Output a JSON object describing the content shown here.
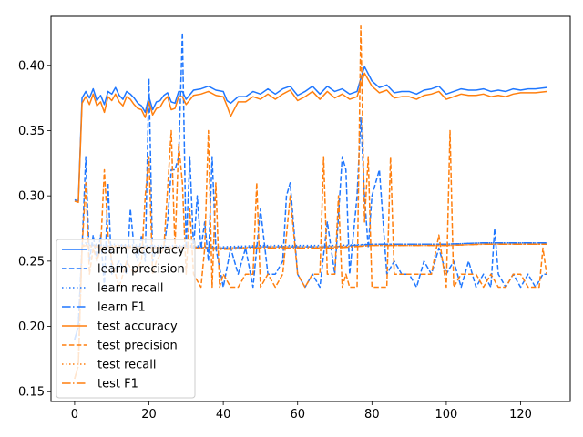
{
  "chart_data": {
    "type": "line",
    "title": "",
    "xlabel": "",
    "ylabel": "",
    "xlim": [
      -6.35,
      133.35
    ],
    "ylim": [
      0.1425,
      0.4375
    ],
    "xticks": [
      0,
      20,
      40,
      60,
      80,
      100,
      120
    ],
    "yticks": [
      0.15,
      0.2,
      0.25,
      0.3,
      0.35,
      0.4
    ],
    "ytick_labels": [
      "0.15",
      "0.20",
      "0.25",
      "0.30",
      "0.35",
      "0.40"
    ],
    "grid": false,
    "legend_position": "lower-left",
    "colors": {
      "learn": "#1f77ff",
      "test": "#ff7f0e"
    },
    "series": [
      {
        "name": "learn accuracy",
        "group": "learn",
        "style": "solid",
        "x": [
          0,
          1,
          2,
          3,
          4,
          5,
          6,
          7,
          8,
          9,
          10,
          11,
          12,
          13,
          14,
          15,
          16,
          17,
          18,
          19,
          20,
          21,
          22,
          23,
          24,
          25,
          26,
          27,
          28,
          29,
          30,
          32,
          34,
          36,
          38,
          40,
          41,
          42,
          44,
          46,
          48,
          50,
          52,
          54,
          56,
          58,
          60,
          62,
          64,
          66,
          68,
          70,
          72,
          74,
          76,
          77,
          78,
          80,
          82,
          84,
          86,
          88,
          90,
          92,
          94,
          96,
          98,
          100,
          102,
          104,
          106,
          108,
          110,
          112,
          114,
          116,
          118,
          120,
          122,
          124,
          127
        ],
        "y": [
          0.297,
          0.296,
          0.375,
          0.38,
          0.375,
          0.382,
          0.373,
          0.377,
          0.37,
          0.38,
          0.378,
          0.383,
          0.377,
          0.374,
          0.38,
          0.378,
          0.375,
          0.371,
          0.369,
          0.364,
          0.376,
          0.366,
          0.372,
          0.373,
          0.377,
          0.379,
          0.372,
          0.371,
          0.38,
          0.38,
          0.374,
          0.381,
          0.382,
          0.384,
          0.381,
          0.38,
          0.373,
          0.371,
          0.376,
          0.376,
          0.38,
          0.378,
          0.382,
          0.378,
          0.382,
          0.384,
          0.377,
          0.38,
          0.384,
          0.378,
          0.384,
          0.38,
          0.382,
          0.378,
          0.38,
          0.39,
          0.399,
          0.388,
          0.383,
          0.385,
          0.379,
          0.38,
          0.38,
          0.378,
          0.381,
          0.382,
          0.384,
          0.378,
          0.38,
          0.382,
          0.381,
          0.381,
          0.382,
          0.38,
          0.381,
          0.38,
          0.382,
          0.381,
          0.382,
          0.382,
          0.383
        ]
      },
      {
        "name": "learn precision",
        "group": "learn",
        "style": "dashed",
        "x": [
          0,
          1,
          2,
          3,
          4,
          5,
          6,
          7,
          8,
          9,
          10,
          12,
          14,
          15,
          16,
          17,
          18,
          19,
          20,
          21,
          22,
          24,
          25,
          26,
          27,
          28,
          29,
          30,
          31,
          32,
          33,
          34,
          35,
          36,
          37,
          38,
          40,
          42,
          44,
          46,
          48,
          50,
          52,
          54,
          56,
          57,
          58,
          60,
          62,
          64,
          66,
          68,
          70,
          72,
          73,
          74,
          76,
          77,
          78,
          79,
          80,
          82,
          84,
          86,
          88,
          90,
          92,
          94,
          96,
          98,
          100,
          102,
          104,
          106,
          108,
          110,
          112,
          113,
          114,
          116,
          118,
          120,
          122,
          124,
          126,
          127
        ],
        "y": [
          0.19,
          0.2,
          0.26,
          0.33,
          0.25,
          0.27,
          0.25,
          0.27,
          0.23,
          0.31,
          0.24,
          0.25,
          0.24,
          0.29,
          0.26,
          0.25,
          0.27,
          0.25,
          0.39,
          0.25,
          0.26,
          0.26,
          0.28,
          0.32,
          0.32,
          0.33,
          0.425,
          0.26,
          0.33,
          0.26,
          0.3,
          0.26,
          0.28,
          0.25,
          0.33,
          0.26,
          0.23,
          0.26,
          0.24,
          0.26,
          0.23,
          0.29,
          0.24,
          0.24,
          0.25,
          0.3,
          0.31,
          0.24,
          0.23,
          0.24,
          0.23,
          0.28,
          0.24,
          0.33,
          0.32,
          0.24,
          0.3,
          0.36,
          0.3,
          0.26,
          0.3,
          0.32,
          0.24,
          0.25,
          0.24,
          0.24,
          0.23,
          0.25,
          0.24,
          0.26,
          0.24,
          0.25,
          0.23,
          0.25,
          0.23,
          0.24,
          0.23,
          0.275,
          0.24,
          0.23,
          0.24,
          0.23,
          0.24,
          0.23,
          0.24,
          0.24
        ]
      },
      {
        "name": "learn recall",
        "group": "learn",
        "style": "dotted",
        "x": [
          0,
          1,
          2,
          3,
          4,
          6,
          8,
          10,
          20,
          30,
          40,
          50,
          60,
          70,
          80,
          90,
          100,
          110,
          120,
          127
        ],
        "y": [
          0.19,
          0.2,
          0.262,
          0.264,
          0.263,
          0.263,
          0.262,
          0.263,
          0.262,
          0.262,
          0.261,
          0.262,
          0.262,
          0.262,
          0.263,
          0.263,
          0.263,
          0.264,
          0.264,
          0.264
        ]
      },
      {
        "name": "learn F1",
        "group": "learn",
        "style": "dashdot",
        "x": [
          0,
          1,
          2,
          3,
          4,
          6,
          8,
          10,
          20,
          30,
          40,
          50,
          60,
          70,
          80,
          90,
          100,
          110,
          120,
          127
        ],
        "y": [
          0.19,
          0.2,
          0.261,
          0.263,
          0.262,
          0.262,
          0.261,
          0.262,
          0.261,
          0.261,
          0.26,
          0.261,
          0.261,
          0.261,
          0.263,
          0.263,
          0.263,
          0.264,
          0.264,
          0.264
        ]
      },
      {
        "name": "test accuracy",
        "group": "test",
        "style": "solid",
        "x": [
          0,
          1,
          2,
          3,
          4,
          5,
          6,
          7,
          8,
          9,
          10,
          11,
          12,
          13,
          14,
          15,
          16,
          17,
          18,
          19,
          20,
          21,
          22,
          23,
          24,
          25,
          26,
          27,
          28,
          29,
          30,
          32,
          34,
          36,
          38,
          40,
          41,
          42,
          44,
          46,
          48,
          50,
          52,
          54,
          56,
          58,
          60,
          62,
          64,
          66,
          68,
          70,
          72,
          74,
          76,
          77,
          78,
          80,
          82,
          84,
          86,
          88,
          90,
          92,
          94,
          96,
          98,
          100,
          102,
          104,
          106,
          108,
          110,
          112,
          114,
          116,
          118,
          120,
          122,
          124,
          127
        ],
        "y": [
          0.296,
          0.295,
          0.371,
          0.376,
          0.37,
          0.378,
          0.369,
          0.372,
          0.364,
          0.376,
          0.373,
          0.378,
          0.372,
          0.369,
          0.376,
          0.374,
          0.37,
          0.367,
          0.366,
          0.36,
          0.372,
          0.362,
          0.367,
          0.368,
          0.373,
          0.376,
          0.366,
          0.367,
          0.376,
          0.376,
          0.37,
          0.377,
          0.378,
          0.38,
          0.377,
          0.376,
          0.369,
          0.361,
          0.372,
          0.372,
          0.376,
          0.374,
          0.378,
          0.374,
          0.378,
          0.381,
          0.373,
          0.376,
          0.38,
          0.374,
          0.38,
          0.375,
          0.378,
          0.374,
          0.376,
          0.385,
          0.394,
          0.384,
          0.379,
          0.381,
          0.375,
          0.376,
          0.376,
          0.374,
          0.377,
          0.378,
          0.38,
          0.374,
          0.376,
          0.378,
          0.377,
          0.377,
          0.378,
          0.376,
          0.377,
          0.376,
          0.378,
          0.379,
          0.379,
          0.379,
          0.38
        ]
      },
      {
        "name": "test precision",
        "group": "test",
        "style": "dashed",
        "x": [
          0,
          1,
          2,
          3,
          4,
          5,
          6,
          7,
          8,
          9,
          10,
          12,
          14,
          16,
          18,
          19,
          20,
          21,
          22,
          24,
          26,
          27,
          28,
          29,
          30,
          31,
          32,
          34,
          35,
          36,
          37,
          38,
          39,
          40,
          42,
          44,
          46,
          48,
          49,
          50,
          52,
          54,
          56,
          58,
          60,
          62,
          64,
          66,
          67,
          68,
          70,
          71,
          72,
          73,
          74,
          76,
          77,
          78,
          79,
          80,
          82,
          84,
          85,
          86,
          88,
          90,
          92,
          94,
          96,
          98,
          100,
          101,
          102,
          104,
          106,
          108,
          110,
          112,
          114,
          116,
          118,
          120,
          122,
          124,
          125,
          126,
          127
        ],
        "y": [
          0.16,
          0.17,
          0.26,
          0.31,
          0.24,
          0.26,
          0.25,
          0.26,
          0.32,
          0.27,
          0.25,
          0.23,
          0.25,
          0.24,
          0.25,
          0.3,
          0.33,
          0.24,
          0.25,
          0.26,
          0.35,
          0.26,
          0.34,
          0.31,
          0.24,
          0.29,
          0.24,
          0.23,
          0.26,
          0.35,
          0.23,
          0.31,
          0.23,
          0.24,
          0.23,
          0.23,
          0.24,
          0.24,
          0.31,
          0.23,
          0.24,
          0.23,
          0.24,
          0.3,
          0.24,
          0.23,
          0.24,
          0.24,
          0.33,
          0.24,
          0.24,
          0.3,
          0.23,
          0.24,
          0.23,
          0.23,
          0.43,
          0.28,
          0.33,
          0.23,
          0.23,
          0.23,
          0.33,
          0.24,
          0.24,
          0.24,
          0.24,
          0.24,
          0.24,
          0.27,
          0.23,
          0.35,
          0.23,
          0.24,
          0.24,
          0.24,
          0.23,
          0.24,
          0.23,
          0.23,
          0.24,
          0.24,
          0.23,
          0.23,
          0.23,
          0.26,
          0.24
        ]
      },
      {
        "name": "test recall",
        "group": "test",
        "style": "dotted",
        "x": [
          0,
          1,
          2,
          3,
          4,
          6,
          8,
          10,
          20,
          30,
          40,
          50,
          60,
          70,
          80,
          90,
          100,
          110,
          120,
          127
        ],
        "y": [
          0.16,
          0.17,
          0.262,
          0.263,
          0.262,
          0.262,
          0.261,
          0.262,
          0.261,
          0.261,
          0.26,
          0.261,
          0.261,
          0.261,
          0.262,
          0.262,
          0.262,
          0.263,
          0.263,
          0.263
        ]
      },
      {
        "name": "test F1",
        "group": "test",
        "style": "dashdot",
        "x": [
          0,
          1,
          2,
          3,
          4,
          6,
          8,
          10,
          20,
          30,
          40,
          50,
          60,
          70,
          80,
          90,
          100,
          110,
          120,
          127
        ],
        "y": [
          0.16,
          0.17,
          0.261,
          0.262,
          0.261,
          0.261,
          0.26,
          0.261,
          0.26,
          0.26,
          0.259,
          0.26,
          0.26,
          0.26,
          0.262,
          0.262,
          0.262,
          0.263,
          0.263,
          0.263
        ]
      }
    ]
  }
}
